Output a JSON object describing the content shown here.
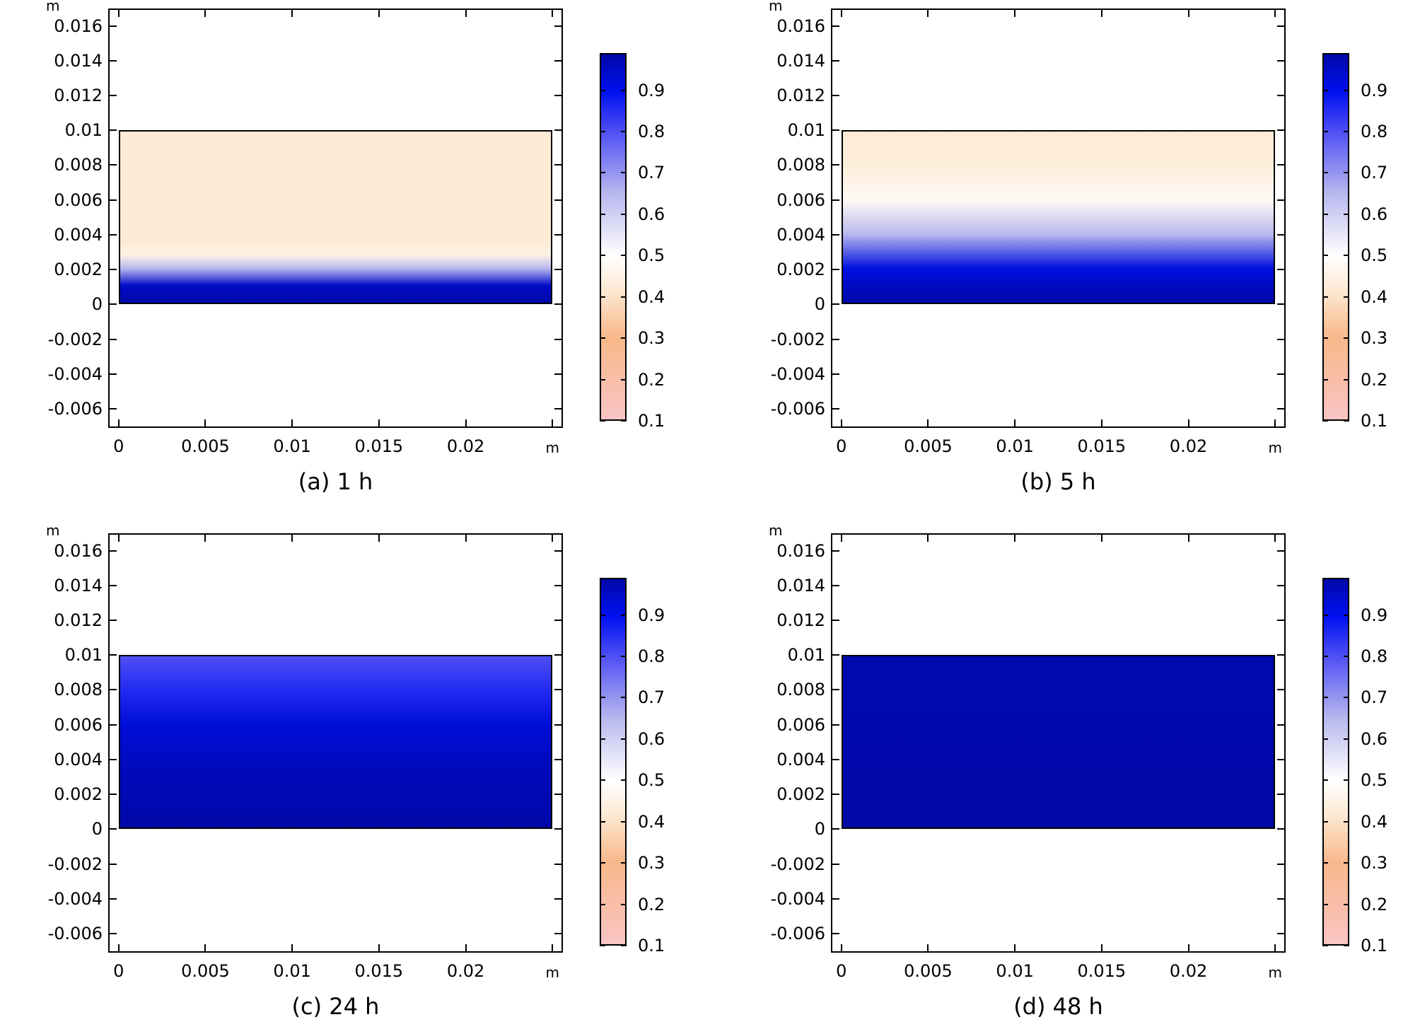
{
  "chart_data": [
    {
      "type": "heatmap",
      "caption": "(a) 1 h",
      "x_unit": "m",
      "y_unit": "m",
      "x_ticks": [
        "0",
        "0.005",
        "0.01",
        "0.015",
        "0.02"
      ],
      "x_tick_values": [
        0,
        0.005,
        0.01,
        0.015,
        0.02
      ],
      "y_ticks": [
        "0.016",
        "0.014",
        "0.012",
        "0.01",
        "0.008",
        "0.006",
        "0.004",
        "0.002",
        "0",
        "-0.002",
        "-0.004",
        "-0.006"
      ],
      "y_tick_values": [
        0.016,
        0.014,
        0.012,
        0.01,
        0.008,
        0.006,
        0.004,
        0.002,
        0,
        -0.002,
        -0.004,
        -0.006
      ],
      "xlim": [
        -0.0006,
        0.0256
      ],
      "ylim": [
        -0.0071,
        0.017
      ],
      "domain": {
        "x": [
          0,
          0.025
        ],
        "y": [
          0,
          0.01
        ]
      },
      "colorbar": {
        "ticks": [
          "0.9",
          "0.8",
          "0.7",
          "0.6",
          "0.5",
          "0.4",
          "0.3",
          "0.2",
          "0.1"
        ],
        "tick_values": [
          0.9,
          0.8,
          0.7,
          0.6,
          0.5,
          0.4,
          0.3,
          0.2,
          0.1
        ],
        "range": [
          0.1,
          0.99
        ]
      },
      "profile": [
        {
          "y": 0.0,
          "value": 0.99
        },
        {
          "y": 0.001,
          "value": 0.95
        },
        {
          "y": 0.002,
          "value": 0.65
        },
        {
          "y": 0.0028,
          "value": 0.45
        },
        {
          "y": 0.0035,
          "value": 0.42
        },
        {
          "y": 0.01,
          "value": 0.42
        }
      ]
    },
    {
      "type": "heatmap",
      "caption": "(b) 5 h",
      "x_unit": "m",
      "y_unit": "m",
      "x_ticks": [
        "0",
        "0.005",
        "0.01",
        "0.015",
        "0.02"
      ],
      "x_tick_values": [
        0,
        0.005,
        0.01,
        0.015,
        0.02
      ],
      "y_ticks": [
        "0.016",
        "0.014",
        "0.012",
        "0.01",
        "0.008",
        "0.006",
        "0.004",
        "0.002",
        "0",
        "-0.002",
        "-0.004",
        "-0.006"
      ],
      "y_tick_values": [
        0.016,
        0.014,
        0.012,
        0.01,
        0.008,
        0.006,
        0.004,
        0.002,
        0,
        -0.002,
        -0.004,
        -0.006
      ],
      "xlim": [
        -0.0006,
        0.0256
      ],
      "ylim": [
        -0.0071,
        0.017
      ],
      "domain": {
        "x": [
          0,
          0.025
        ],
        "y": [
          0,
          0.01
        ]
      },
      "colorbar": {
        "ticks": [
          "0.9",
          "0.8",
          "0.7",
          "0.6",
          "0.5",
          "0.4",
          "0.3",
          "0.2",
          "0.1"
        ],
        "tick_values": [
          0.9,
          0.8,
          0.7,
          0.6,
          0.5,
          0.4,
          0.3,
          0.2,
          0.1
        ],
        "range": [
          0.1,
          0.99
        ]
      },
      "profile": [
        {
          "y": 0.0,
          "value": 0.99
        },
        {
          "y": 0.002,
          "value": 0.92
        },
        {
          "y": 0.004,
          "value": 0.65
        },
        {
          "y": 0.006,
          "value": 0.48
        },
        {
          "y": 0.008,
          "value": 0.43
        },
        {
          "y": 0.01,
          "value": 0.42
        }
      ]
    },
    {
      "type": "heatmap",
      "caption": "(c) 24 h",
      "x_unit": "m",
      "y_unit": "m",
      "x_ticks": [
        "0",
        "0.005",
        "0.01",
        "0.015",
        "0.02"
      ],
      "x_tick_values": [
        0,
        0.005,
        0.01,
        0.015,
        0.02
      ],
      "y_ticks": [
        "0.016",
        "0.014",
        "0.012",
        "0.01",
        "0.008",
        "0.006",
        "0.004",
        "0.002",
        "0",
        "-0.002",
        "-0.004",
        "-0.006"
      ],
      "y_tick_values": [
        0.016,
        0.014,
        0.012,
        0.01,
        0.008,
        0.006,
        0.004,
        0.002,
        0,
        -0.002,
        -0.004,
        -0.006
      ],
      "xlim": [
        -0.0006,
        0.0256
      ],
      "ylim": [
        -0.0071,
        0.017
      ],
      "domain": {
        "x": [
          0,
          0.025
        ],
        "y": [
          0,
          0.01
        ]
      },
      "colorbar": {
        "ticks": [
          "0.9",
          "0.8",
          "0.7",
          "0.6",
          "0.5",
          "0.4",
          "0.3",
          "0.2",
          "0.1"
        ],
        "tick_values": [
          0.9,
          0.8,
          0.7,
          0.6,
          0.5,
          0.4,
          0.3,
          0.2,
          0.1
        ],
        "range": [
          0.1,
          0.99
        ]
      },
      "profile": [
        {
          "y": 0.0,
          "value": 0.99
        },
        {
          "y": 0.004,
          "value": 0.96
        },
        {
          "y": 0.006,
          "value": 0.93
        },
        {
          "y": 0.008,
          "value": 0.86
        },
        {
          "y": 0.01,
          "value": 0.8
        }
      ]
    },
    {
      "type": "heatmap",
      "caption": "(d) 48 h",
      "x_unit": "m",
      "y_unit": "m",
      "x_ticks": [
        "0",
        "0.005",
        "0.01",
        "0.015",
        "0.02"
      ],
      "x_tick_values": [
        0,
        0.005,
        0.01,
        0.015,
        0.02
      ],
      "y_ticks": [
        "0.016",
        "0.014",
        "0.012",
        "0.01",
        "0.008",
        "0.006",
        "0.004",
        "0.002",
        "0",
        "-0.002",
        "-0.004",
        "-0.006"
      ],
      "y_tick_values": [
        0.016,
        0.014,
        0.012,
        0.01,
        0.008,
        0.006,
        0.004,
        0.002,
        0,
        -0.002,
        -0.004,
        -0.006
      ],
      "xlim": [
        -0.0006,
        0.0256
      ],
      "ylim": [
        -0.0071,
        0.017
      ],
      "domain": {
        "x": [
          0,
          0.025
        ],
        "y": [
          0,
          0.01
        ]
      },
      "colorbar": {
        "ticks": [
          "0.9",
          "0.8",
          "0.7",
          "0.6",
          "0.5",
          "0.4",
          "0.3",
          "0.2",
          "0.1"
        ],
        "tick_values": [
          0.9,
          0.8,
          0.7,
          0.6,
          0.5,
          0.4,
          0.3,
          0.2,
          0.1
        ],
        "range": [
          0.1,
          0.99
        ]
      },
      "profile": [
        {
          "y": 0.0,
          "value": 0.99
        },
        {
          "y": 0.01,
          "value": 0.98
        }
      ]
    }
  ],
  "colormap": [
    {
      "value": 0.1,
      "color": "#f9c4c4"
    },
    {
      "value": 0.3,
      "color": "#f8b88a"
    },
    {
      "value": 0.42,
      "color": "#fdebd6"
    },
    {
      "value": 0.5,
      "color": "#ffffff"
    },
    {
      "value": 0.65,
      "color": "#b8b8ee"
    },
    {
      "value": 0.8,
      "color": "#5050f5"
    },
    {
      "value": 0.9,
      "color": "#0010f0"
    },
    {
      "value": 0.99,
      "color": "#0008a8"
    }
  ]
}
